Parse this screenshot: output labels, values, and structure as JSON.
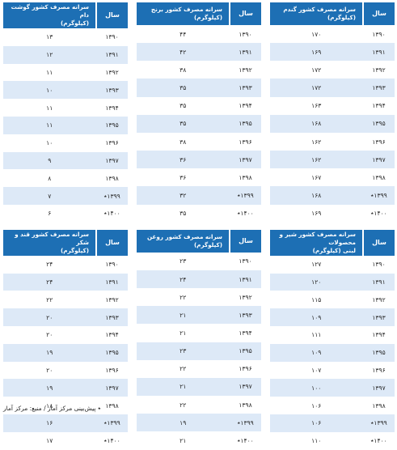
{
  "year_header": "سال",
  "tables": [
    {
      "title_line1": "سرانه مصرف کشور گندم",
      "title_line2": "(کیلوگرم)",
      "rows": [
        {
          "year": "۱۳۹۰",
          "value": "۱۷۰"
        },
        {
          "year": "۱۳۹۱",
          "value": "۱۶۹"
        },
        {
          "year": "۱۳۹۲",
          "value": "۱۷۲"
        },
        {
          "year": "۱۳۹۳",
          "value": "۱۷۲"
        },
        {
          "year": "۱۳۹۴",
          "value": "۱۶۳"
        },
        {
          "year": "۱۳۹۵",
          "value": "۱۶۸"
        },
        {
          "year": "۱۳۹۶",
          "value": "۱۶۲"
        },
        {
          "year": "۱۳۹۷",
          "value": "۱۶۲"
        },
        {
          "year": "۱۳۹۸",
          "value": "۱۶۷"
        },
        {
          "year": "۱۳۹۹٭",
          "value": "۱۶۸"
        },
        {
          "year": "۱۴۰۰٭",
          "value": "۱۶۹"
        }
      ]
    },
    {
      "title_line1": "سرانه مصرف کشور برنج",
      "title_line2": "(کیلوگرم)",
      "rows": [
        {
          "year": "۱۳۹۰",
          "value": "۴۴"
        },
        {
          "year": "۱۳۹۱",
          "value": "۴۲"
        },
        {
          "year": "۱۳۹۲",
          "value": "۳۸"
        },
        {
          "year": "۱۳۹۳",
          "value": "۳۵"
        },
        {
          "year": "۱۳۹۴",
          "value": "۳۵"
        },
        {
          "year": "۱۳۹۵",
          "value": "۳۵"
        },
        {
          "year": "۱۳۹۶",
          "value": "۳۸"
        },
        {
          "year": "۱۳۹۷",
          "value": "۳۶"
        },
        {
          "year": "۱۳۹۸",
          "value": "۳۶"
        },
        {
          "year": "۱۳۹۹٭",
          "value": "۳۲"
        },
        {
          "year": "۱۴۰۰٭",
          "value": "۳۵"
        }
      ]
    },
    {
      "title_line1": "سرانه مصرف کشور گوشت دام",
      "title_line2": "(کیلوگرم)",
      "rows": [
        {
          "year": "۱۳۹۰",
          "value": "۱۳"
        },
        {
          "year": "۱۳۹۱",
          "value": "۱۲"
        },
        {
          "year": "۱۳۹۲",
          "value": "۱۱"
        },
        {
          "year": "۱۳۹۳",
          "value": "۱۰"
        },
        {
          "year": "۱۳۹۴",
          "value": "۱۱"
        },
        {
          "year": "۱۳۹۵",
          "value": "۱۱"
        },
        {
          "year": "۱۳۹۶",
          "value": "۱۰"
        },
        {
          "year": "۱۳۹۷",
          "value": "۹"
        },
        {
          "year": "۱۳۹۸",
          "value": "۸"
        },
        {
          "year": "۱۳۹۹٭",
          "value": "۷"
        },
        {
          "year": "۱۴۰۰٭",
          "value": "۶"
        }
      ]
    },
    {
      "title_line1": "سرانه مصرف کشور شیر و محصولات",
      "title_line2": "لبنی (کیلوگرم)",
      "rows": [
        {
          "year": "۱۳۹۰",
          "value": "۱۲۷"
        },
        {
          "year": "۱۳۹۱",
          "value": "۱۲۰"
        },
        {
          "year": "۱۳۹۲",
          "value": "۱۱۵"
        },
        {
          "year": "۱۳۹۳",
          "value": "۱۰۹"
        },
        {
          "year": "۱۳۹۴",
          "value": "۱۱۱"
        },
        {
          "year": "۱۳۹۵",
          "value": "۱۰۹"
        },
        {
          "year": "۱۳۹۶",
          "value": "۱۰۷"
        },
        {
          "year": "۱۳۹۷",
          "value": "۱۰۰"
        },
        {
          "year": "۱۳۹۸",
          "value": "۱۰۶"
        },
        {
          "year": "۱۳۹۹٭",
          "value": "۱۰۶"
        },
        {
          "year": "۱۴۰۰٭",
          "value": "۱۱۰"
        }
      ]
    },
    {
      "title_line1": "سرانه مصرف کشور روغن",
      "title_line2": "(کیلوگرم)",
      "rows": [
        {
          "year": "۱۳۹۰",
          "value": "۲۳"
        },
        {
          "year": "۱۳۹۱",
          "value": "۲۴"
        },
        {
          "year": "۱۳۹۲",
          "value": "۲۲"
        },
        {
          "year": "۱۳۹۳",
          "value": "۲۱"
        },
        {
          "year": "۱۳۹۴",
          "value": "۲۱"
        },
        {
          "year": "۱۳۹۵",
          "value": "۲۳"
        },
        {
          "year": "۱۳۹۶",
          "value": "۲۲"
        },
        {
          "year": "۱۳۹۷",
          "value": "۲۱"
        },
        {
          "year": "۱۳۹۸",
          "value": "۲۲"
        },
        {
          "year": "۱۳۹۹٭",
          "value": "۱۹"
        },
        {
          "year": "۱۴۰۰٭",
          "value": "۲۱"
        }
      ]
    },
    {
      "title_line1": "سرانه مصرف کشور قند و شکر",
      "title_line2": "(کیلوگرم)",
      "rows": [
        {
          "year": "۱۳۹۰",
          "value": "۲۴"
        },
        {
          "year": "۱۳۹۱",
          "value": "۲۴"
        },
        {
          "year": "۱۳۹۲",
          "value": "۲۲"
        },
        {
          "year": "۱۳۹۳",
          "value": "۲۰"
        },
        {
          "year": "۱۳۹۴",
          "value": "۲۰"
        },
        {
          "year": "۱۳۹۵",
          "value": "۱۹"
        },
        {
          "year": "۱۳۹۶",
          "value": "۲۰"
        },
        {
          "year": "۱۳۹۷",
          "value": "۱۹"
        },
        {
          "year": "۱۳۹۸",
          "value": "۱۸"
        },
        {
          "year": "۱۳۹۹٭",
          "value": "۱۶"
        },
        {
          "year": "۱۴۰۰٭",
          "value": "۱۷"
        }
      ]
    }
  ],
  "footnote": "٭ پیش‌بینی مرکز آمار / منبع: مرکز آمار"
}
